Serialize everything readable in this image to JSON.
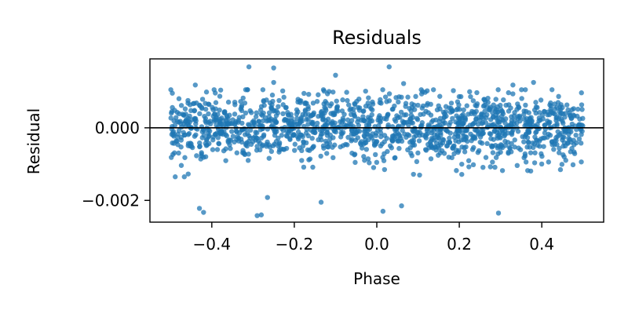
{
  "chart_data": {
    "type": "scatter",
    "title": "Residuals",
    "xlabel": "Phase",
    "ylabel": "Residual",
    "xlim": [
      -0.55,
      0.55
    ],
    "ylim": [
      -0.0026,
      0.0019
    ],
    "xticks": [
      -0.4,
      -0.2,
      0.0,
      0.2,
      0.4
    ],
    "xtick_labels": [
      "−0.4",
      "−0.2",
      "0.0",
      "0.2",
      "0.4"
    ],
    "yticks": [
      0.0,
      -0.002
    ],
    "ytick_labels": [
      "0.000",
      "−0.002"
    ],
    "reference_line_y": 0.0,
    "grid": false,
    "marker_color": "#1f77b4",
    "line_color": "#000000",
    "series": [
      {
        "n_points": 1500,
        "x_range": [
          -0.5,
          0.5
        ],
        "y_std": 0.00045,
        "outliers": [
          {
            "x": -0.43,
            "y": -0.00222
          },
          {
            "x": -0.42,
            "y": -0.00233
          },
          {
            "x": -0.29,
            "y": -0.00242
          },
          {
            "x": -0.28,
            "y": -0.0024
          },
          {
            "x": -0.265,
            "y": -0.00192
          },
          {
            "x": -0.135,
            "y": -0.00205
          },
          {
            "x": 0.015,
            "y": -0.0023
          },
          {
            "x": 0.06,
            "y": -0.00215
          },
          {
            "x": 0.295,
            "y": -0.00235
          },
          {
            "x": -0.31,
            "y": 0.00168
          },
          {
            "x": -0.25,
            "y": 0.00165
          },
          {
            "x": 0.03,
            "y": 0.00168
          },
          {
            "x": -0.1,
            "y": 0.00145
          },
          {
            "x": -0.25,
            "y": 0.00125
          },
          {
            "x": 0.065,
            "y": 0.00122
          },
          {
            "x": 0.33,
            "y": 0.00118
          },
          {
            "x": 0.38,
            "y": 0.00125
          },
          {
            "x": -0.44,
            "y": 0.00118
          }
        ]
      }
    ]
  }
}
